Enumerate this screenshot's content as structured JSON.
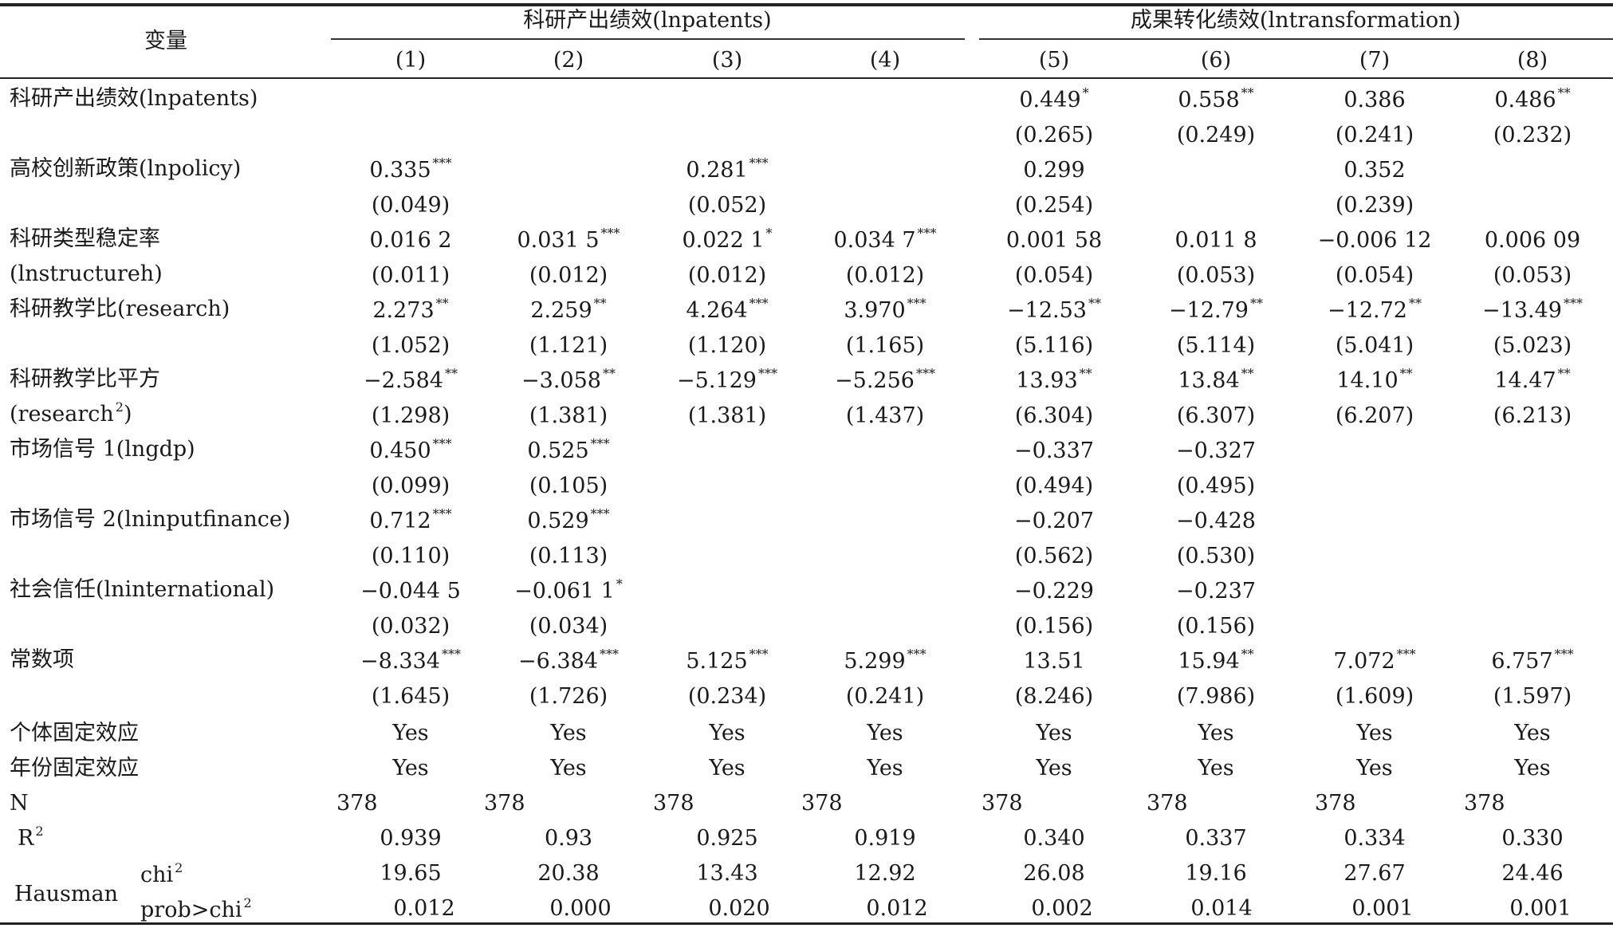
{
  "header": {
    "variable_label": "变量",
    "group1": "科研产出绩效(lnpatents)",
    "group2": "成果转化绩效(lntransformation)",
    "columns": [
      "(1)",
      "(2)",
      "(3)",
      "(4)",
      "(5)",
      "(6)",
      "(7)",
      "(8)"
    ]
  },
  "rows": [
    {
      "label": "科研产出绩效(lnpatents)",
      "label2": "",
      "coef": [
        "",
        "",
        "",
        "",
        "0.449",
        "0.558",
        "0.386",
        "0.486"
      ],
      "stars": [
        "",
        "",
        "",
        "",
        "*",
        "**",
        "",
        "**"
      ],
      "se": [
        "",
        "",
        "",
        "",
        "(0.265)",
        "(0.249)",
        "(0.241)",
        "(0.232)"
      ]
    },
    {
      "label": "高校创新政策(lnpolicy)",
      "label2": "",
      "coef": [
        "0.335",
        "",
        "0.281",
        "",
        "0.299",
        "",
        "0.352",
        ""
      ],
      "stars": [
        "***",
        "",
        "***",
        "",
        "",
        "",
        "",
        ""
      ],
      "se": [
        "(0.049)",
        "",
        "(0.052)",
        "",
        "(0.254)",
        "",
        "(0.239)",
        ""
      ]
    },
    {
      "label": "科研类型稳定率",
      "label2": "(lnstructureh)",
      "coef": [
        "0.016 2",
        "0.031 5",
        "0.022 1",
        "0.034 7",
        "0.001 58",
        "0.011 8",
        "−0.006 12",
        "0.006 09"
      ],
      "stars": [
        "",
        "***",
        "*",
        "***",
        "",
        "",
        "",
        ""
      ],
      "se": [
        "(0.011)",
        "(0.012)",
        "(0.012)",
        "(0.012)",
        "(0.054)",
        "(0.053)",
        "(0.054)",
        "(0.053)"
      ]
    },
    {
      "label": "科研教学比(research)",
      "label2": "",
      "coef": [
        "2.273",
        "2.259",
        "4.264",
        "3.970",
        "−12.53",
        "−12.79",
        "−12.72",
        "−13.49"
      ],
      "stars": [
        "**",
        "**",
        "***",
        "***",
        "**",
        "**",
        "**",
        "***"
      ],
      "se": [
        "(1.052)",
        "(1.121)",
        "(1.120)",
        "(1.165)",
        "(5.116)",
        "(5.114)",
        "(5.041)",
        "(5.023)"
      ]
    },
    {
      "label": "科研教学比平方",
      "label2": "(research",
      "label2_sup": "2",
      "label2_tail": ")",
      "coef": [
        "−2.584",
        "−3.058",
        "−5.129",
        "−5.256",
        "13.93",
        "13.84",
        "14.10",
        "14.47"
      ],
      "stars": [
        "**",
        "**",
        "***",
        "***",
        "**",
        "**",
        "**",
        "**"
      ],
      "se": [
        "(1.298)",
        "(1.381)",
        "(1.381)",
        "(1.437)",
        "(6.304)",
        "(6.307)",
        "(6.207)",
        "(6.213)"
      ]
    },
    {
      "label": "市场信号 1(lngdp)",
      "label2": "",
      "coef": [
        "0.450",
        "0.525",
        "",
        "",
        "−0.337",
        "−0.327",
        "",
        ""
      ],
      "stars": [
        "***",
        "***",
        "",
        "",
        "",
        "",
        "",
        ""
      ],
      "se": [
        "(0.099)",
        "(0.105)",
        "",
        "",
        "(0.494)",
        "(0.495)",
        "",
        ""
      ]
    },
    {
      "label": "市场信号 2(lninputfinance)",
      "label2": "",
      "coef": [
        "0.712",
        "0.529",
        "",
        "",
        "−0.207",
        "−0.428",
        "",
        ""
      ],
      "stars": [
        "***",
        "***",
        "",
        "",
        "",
        "",
        "",
        ""
      ],
      "se": [
        "(0.110)",
        "(0.113)",
        "",
        "",
        "(0.562)",
        "(0.530)",
        "",
        ""
      ]
    },
    {
      "label": "社会信任(lninternational)",
      "label2": "",
      "coef": [
        "−0.044 5",
        "−0.061 1",
        "",
        "",
        "−0.229",
        "−0.237",
        "",
        ""
      ],
      "stars": [
        "",
        "*",
        "",
        "",
        "",
        "",
        "",
        ""
      ],
      "se": [
        "(0.032)",
        "(0.034)",
        "",
        "",
        "(0.156)",
        "(0.156)",
        "",
        ""
      ]
    },
    {
      "label": "常数项",
      "label2": "",
      "coef": [
        "−8.334",
        "−6.384",
        "5.125",
        "5.299",
        "13.51",
        "15.94",
        "7.072",
        "6.757"
      ],
      "stars": [
        "***",
        "***",
        "***",
        "***",
        "",
        "**",
        "***",
        "***"
      ],
      "se": [
        "(1.645)",
        "(1.726)",
        "(0.234)",
        "(0.241)",
        "(8.246)",
        "(7.986)",
        "(1.609)",
        "(1.597)"
      ]
    }
  ],
  "fixed_effects": [
    {
      "label": "个体固定效应",
      "values": [
        "Yes",
        "Yes",
        "Yes",
        "Yes",
        "Yes",
        "Yes",
        "Yes",
        "Yes"
      ]
    },
    {
      "label": "年份固定效应",
      "values": [
        "Yes",
        "Yes",
        "Yes",
        "Yes",
        "Yes",
        "Yes",
        "Yes",
        "Yes"
      ]
    }
  ],
  "n_row": {
    "label": "N",
    "values": [
      "378",
      "378",
      "378",
      "378",
      "378",
      "378",
      "378",
      "378"
    ]
  },
  "r2_row": {
    "label": "R",
    "label_sup": "2",
    "values": [
      "0.939",
      "0.93",
      "0.925",
      "0.919",
      "0.340",
      "0.337",
      "0.334",
      "0.330"
    ]
  },
  "hausman": {
    "label": "Hausman",
    "chi_label": "chi",
    "chi_sup": "2",
    "prob_label": "prob>chi",
    "prob_sup": "2",
    "chi": [
      "19.65",
      "20.38",
      "13.43",
      "12.92",
      "26.08",
      "19.16",
      "27.67",
      "24.46"
    ],
    "prob": [
      "0.012",
      "0.000",
      "0.020",
      "0.012",
      "0.002",
      "0.014",
      "0.001",
      "0.001"
    ]
  }
}
